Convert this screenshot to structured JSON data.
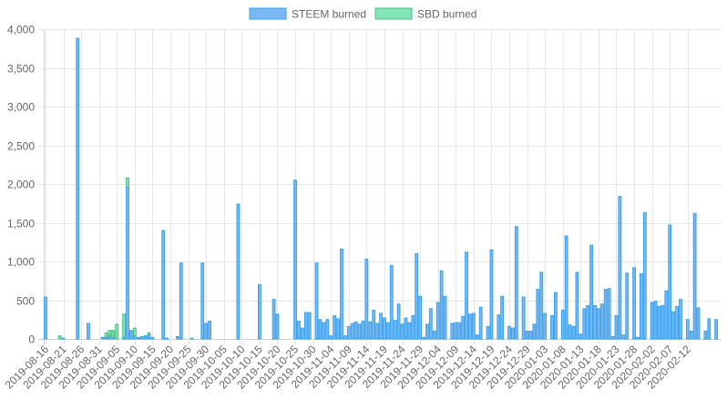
{
  "chart_data": {
    "type": "bar",
    "stacked": true,
    "legend_position": "top",
    "grid": true,
    "ylim": [
      0,
      4000
    ],
    "y_ticks": [
      "0",
      "500",
      "1,000",
      "1,500",
      "2,000",
      "2,500",
      "3,000",
      "3,500",
      "4,000"
    ],
    "x_tick_labels": [
      "2019-08-16",
      "2019-08-21",
      "2019-08-26",
      "2019-08-31",
      "2019-09-05",
      "2019-09-10",
      "2019-09-15",
      "2019-09-20",
      "2019-09-25",
      "2019-09-30",
      "2019-10-05",
      "2019-10-10",
      "2019-10-15",
      "2019-10-20",
      "2019-10-25",
      "2019-10-30",
      "2019-11-04",
      "2019-11-09",
      "2019-11-14",
      "2019-11-19",
      "2019-11-24",
      "2019-11-29",
      "2019-12-04",
      "2019-12-09",
      "2019-12-14",
      "2019-12-19",
      "2019-12-24",
      "2019-12-29",
      "2020-01-03",
      "2020-01-08",
      "2020-01-13",
      "2020-01-18",
      "2020-01-23",
      "2020-01-28",
      "2020-02-02",
      "2020-02-07",
      "2020-02-12"
    ],
    "series": [
      {
        "name": "STEEM burned",
        "color": "#36a2eb",
        "fill": "#7ab8f5",
        "values": [
          540,
          0,
          0,
          0,
          0,
          10,
          0,
          0,
          0,
          3880,
          0,
          0,
          200,
          0,
          0,
          0,
          20,
          20,
          40,
          20,
          0,
          0,
          20,
          1970,
          110,
          40,
          20,
          30,
          40,
          60,
          20,
          0,
          0,
          1400,
          10,
          0,
          0,
          30,
          980,
          0,
          0,
          10,
          0,
          0,
          980,
          200,
          230,
          0,
          0,
          0,
          0,
          0,
          0,
          0,
          1740,
          0,
          0,
          0,
          0,
          0,
          700,
          0,
          0,
          0,
          510,
          320,
          0,
          0,
          0,
          0,
          2050,
          230,
          140,
          340,
          340,
          0,
          980,
          250,
          210,
          250,
          40,
          300,
          260,
          1160,
          40,
          160,
          200,
          220,
          190,
          230,
          1030,
          220,
          370,
          200,
          330,
          270,
          210,
          950,
          240,
          450,
          190,
          270,
          210,
          300,
          1100,
          550,
          20,
          190,
          390,
          100,
          470,
          880,
          550,
          0,
          200,
          210,
          210,
          290,
          1120,
          320,
          330,
          50,
          410,
          0,
          160,
          1150,
          0,
          310,
          550,
          0,
          160,
          140,
          1450,
          0,
          540,
          100,
          100,
          190,
          640,
          860,
          330,
          0,
          300,
          600,
          0,
          370,
          1330,
          180,
          160,
          860,
          60,
          390,
          430,
          1210,
          430,
          390,
          450,
          640,
          650,
          30,
          300,
          1840,
          50,
          850,
          0,
          920,
          20,
          840,
          1630,
          0,
          470,
          490,
          420,
          430,
          620,
          1470,
          350,
          420,
          510,
          0,
          250,
          100,
          1620,
          400,
          0,
          100,
          260,
          0,
          250,
          0
        ]
      },
      {
        "name": "SBD burned",
        "color": "#4bc07f",
        "fill": "#86e5b8",
        "values": [
          0,
          0,
          0,
          0,
          40,
          0,
          0,
          0,
          0,
          0,
          0,
          0,
          0,
          0,
          0,
          0,
          0,
          60,
          70,
          90,
          190,
          0,
          300,
          110,
          0,
          100,
          0,
          0,
          0,
          20,
          0,
          0,
          0,
          0,
          0,
          0,
          0,
          0,
          0,
          0,
          0,
          0,
          0,
          0,
          0,
          0,
          0,
          0,
          0,
          0,
          0,
          0,
          0,
          0,
          0,
          0,
          0,
          0,
          0,
          0,
          0,
          0,
          0,
          0,
          0,
          0,
          0,
          0,
          0,
          0,
          0,
          0,
          0,
          0,
          0,
          0,
          0,
          0,
          0,
          0,
          0,
          0,
          0,
          0,
          0,
          0,
          0,
          0,
          0,
          0,
          0,
          0,
          0,
          0,
          0,
          0,
          0,
          0,
          0,
          0,
          0,
          0,
          0,
          0,
          0,
          0,
          0,
          0,
          0,
          0,
          0,
          0,
          0,
          0,
          0,
          0,
          0,
          0,
          0,
          0,
          0,
          0,
          0,
          0,
          0,
          0,
          0,
          0,
          0,
          0,
          0,
          0,
          0,
          0,
          0,
          0,
          0,
          0,
          0,
          0,
          0,
          0,
          0,
          0,
          0,
          0,
          0,
          0,
          0,
          0,
          0,
          0,
          0,
          0,
          0,
          0,
          0,
          0,
          0,
          0,
          0,
          0,
          0,
          0,
          0,
          0,
          0,
          0,
          0,
          0,
          0,
          0,
          0,
          0,
          0,
          0,
          0,
          0,
          0,
          0,
          0,
          0,
          0,
          0,
          0,
          0,
          0,
          0,
          0,
          0,
          0,
          0,
          0,
          0,
          0,
          0,
          0,
          0,
          0,
          0
        ]
      }
    ]
  }
}
